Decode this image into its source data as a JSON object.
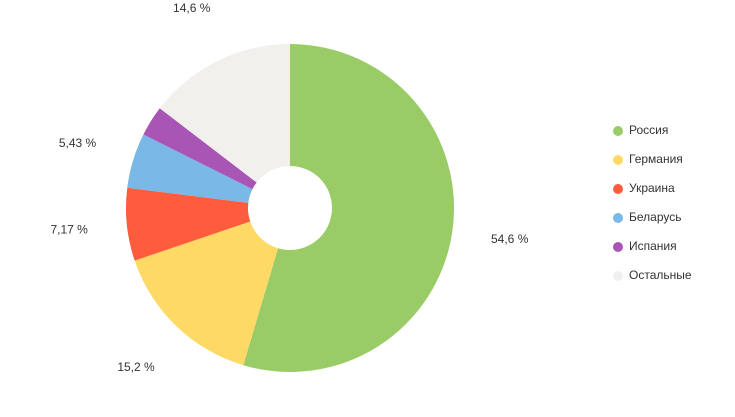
{
  "chart_data": {
    "type": "donut",
    "categories": [
      "Россия",
      "Германия",
      "Украина",
      "Беларусь",
      "Испания",
      "Остальные"
    ],
    "values": [
      54.6,
      15.2,
      7.17,
      5.43,
      3.0,
      14.6
    ],
    "value_labels": [
      "54,6 %",
      "15,2 %",
      "7,17 %",
      "5,43 %",
      null,
      "14,6 %"
    ],
    "colors": [
      "#99cc66",
      "#ffd966",
      "#ff5c3d",
      "#7ab8e8",
      "#a855b5",
      "#f1f0ed"
    ],
    "legend": "right"
  }
}
